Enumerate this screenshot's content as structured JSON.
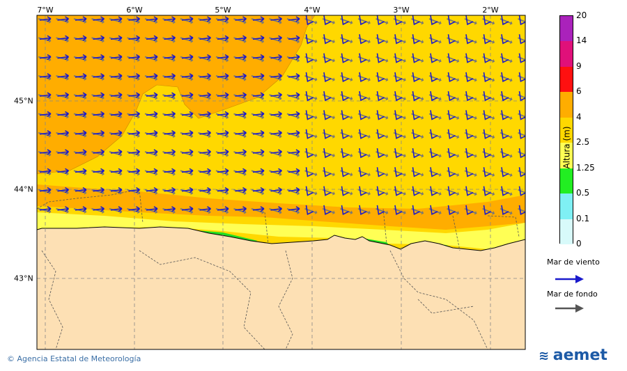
{
  "map": {
    "lon_labels": [
      "7°W",
      "6°W",
      "5°W",
      "4°W",
      "3°W",
      "2°W"
    ],
    "lat_labels": [
      "45°N",
      "44°N",
      "43°N"
    ],
    "colors": {
      "land": "#fde0b4",
      "sea_4": "#ffad00",
      "sea_25": "#ffd800",
      "sea_125": "#ffff55",
      "sea_05": "#22dd22",
      "wind_arrow": "#1a1acc",
      "swell_arrow": "#777777"
    }
  },
  "colorbar": {
    "title": "Altura (m)",
    "ticks": [
      "20",
      "14",
      "9",
      "6",
      "4",
      "2.5",
      "1.25",
      "0.5",
      "0.1",
      "0"
    ],
    "segments": [
      {
        "from": "14",
        "to": "20",
        "color": "#aa22bb"
      },
      {
        "from": "9",
        "to": "14",
        "color": "#e0107a"
      },
      {
        "from": "6",
        "to": "9",
        "color": "#ff1010"
      },
      {
        "from": "4",
        "to": "6",
        "color": "#ffad00"
      },
      {
        "from": "2.5",
        "to": "4",
        "color": "#ffd800"
      },
      {
        "from": "1.25",
        "to": "2.5",
        "color": "#ffff55"
      },
      {
        "from": "0.5",
        "to": "1.25",
        "color": "#22ee22"
      },
      {
        "from": "0.1",
        "to": "0.5",
        "color": "#7ff0f4"
      },
      {
        "from": "0",
        "to": "0.1",
        "color": "#d8fafa"
      }
    ]
  },
  "legend": {
    "wind_label": "Mar de viento",
    "swell_label": "Mar de fondo"
  },
  "footer": {
    "copyright": "© Agencia Estatal de Meteorología",
    "logo_text": "aemet"
  }
}
